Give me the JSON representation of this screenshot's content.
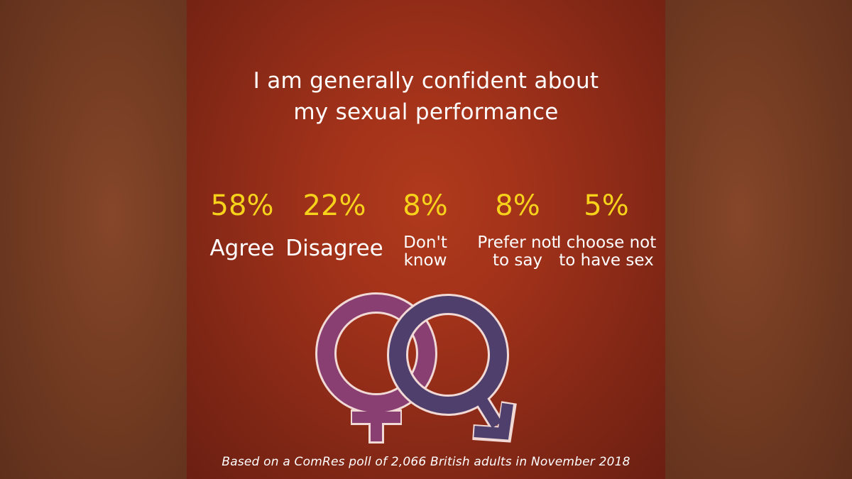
{
  "title_lines": [
    "I am generally confident about",
    "my sexual performance"
  ],
  "footnote": "Based on a ComRes poll of 2,066 British adults in November 2018",
  "colors": {
    "percent": "#f7d21b",
    "text": "#ffffff",
    "female_symbol": "#8a3f73",
    "male_symbol": "#4e3f6c",
    "symbol_outline": "#f1d9d6"
  },
  "icons": [
    "female-symbol-icon",
    "male-symbol-icon"
  ],
  "chart_data": {
    "type": "table",
    "title": "I am generally confident about my sexual performance",
    "categories": [
      "Agree",
      "Disagree",
      "Don't know",
      "Prefer not to say",
      "I choose not to have sex"
    ],
    "values": [
      58,
      22,
      8,
      8,
      5
    ],
    "value_labels": [
      "58%",
      "22%",
      "8%",
      "8%",
      "5%"
    ],
    "label_lines": [
      [
        "Agree"
      ],
      [
        "Disagree"
      ],
      [
        "Don't",
        "know"
      ],
      [
        "Prefer not",
        "to say"
      ],
      [
        "I choose not",
        "to have sex"
      ]
    ],
    "unit": "%"
  }
}
